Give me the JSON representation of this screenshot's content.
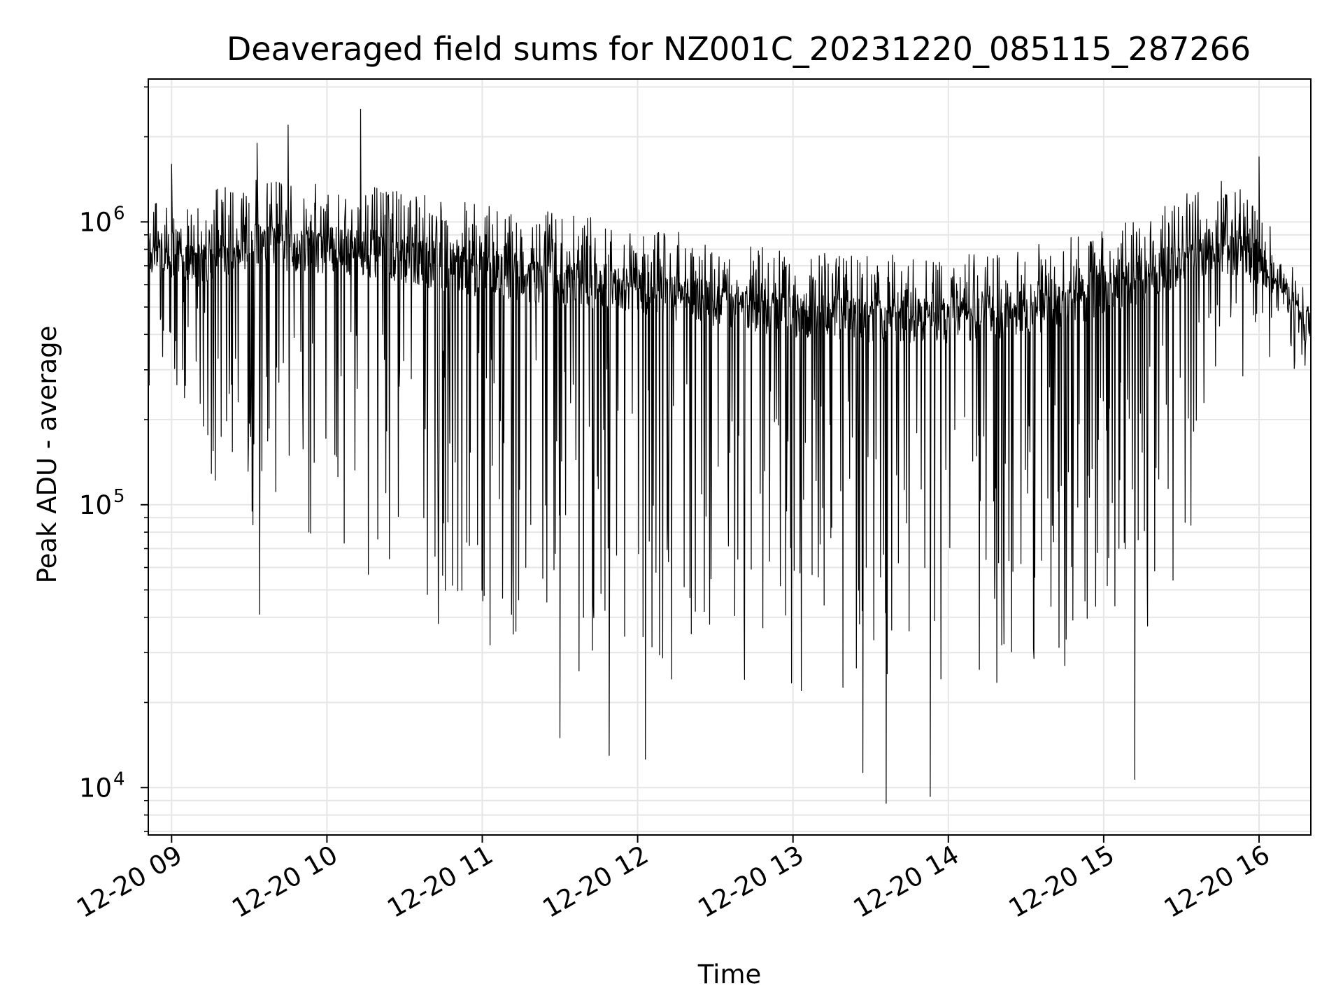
{
  "chart_data": {
    "type": "line",
    "title": "Deaveraged field sums for NZ001C_20231220_085115_287266",
    "xlabel": "Time",
    "ylabel": "Peak ADU - average",
    "yscale": "log",
    "grid": true,
    "x_tick_labels": [
      "12-20 09",
      "12-20 10",
      "12-20 11",
      "12-20 12",
      "12-20 13",
      "12-20 14",
      "12-20 15",
      "12-20 16"
    ],
    "y_tick_labels": [
      {
        "base": "10",
        "exp": "4"
      },
      {
        "base": "10",
        "exp": "5"
      },
      {
        "base": "10",
        "exp": "6"
      }
    ],
    "xlim": [
      "2023-12-20 08:51",
      "2023-12-20 16:20"
    ],
    "ylim": [
      6800,
      3200000
    ],
    "line_color": "#000000",
    "grid_color": "#e6e6e6",
    "series": [
      {
        "x": [
          "2023-12-20 08:51",
          "2023-12-20 08:55",
          "2023-12-20 09:00",
          "2023-12-20 09:10",
          "2023-12-20 09:20",
          "2023-12-20 09:30",
          "2023-12-20 09:45",
          "2023-12-20 10:00",
          "2023-12-20 10:15",
          "2023-12-20 10:30",
          "2023-12-20 10:45",
          "2023-12-20 11:00",
          "2023-12-20 11:15",
          "2023-12-20 11:30",
          "2023-12-20 11:45",
          "2023-12-20 12:00",
          "2023-12-20 12:15",
          "2023-12-20 12:30",
          "2023-12-20 12:45",
          "2023-12-20 13:00",
          "2023-12-20 13:15",
          "2023-12-20 13:30",
          "2023-12-20 13:45",
          "2023-12-20 14:00",
          "2023-12-20 14:15",
          "2023-12-20 14:30",
          "2023-12-20 14:45",
          "2023-12-20 15:00",
          "2023-12-20 15:15",
          "2023-12-20 15:30",
          "2023-12-20 15:45",
          "2023-12-20 16:00",
          "2023-12-20 16:10",
          "2023-12-20 16:20"
        ],
        "upper": [
          900000,
          1300000,
          1000000,
          1200000,
          1300000,
          1400000,
          1400000,
          1350000,
          1300000,
          1250000,
          1200000,
          1150000,
          1100000,
          1050000,
          1000000,
          950000,
          900000,
          850000,
          800000,
          780000,
          760000,
          750000,
          740000,
          740000,
          760000,
          800000,
          850000,
          950000,
          1000000,
          1200000,
          1400000,
          1200000,
          800000,
          500000
        ],
        "median": [
          700000,
          800000,
          700000,
          700000,
          750000,
          800000,
          800000,
          780000,
          760000,
          720000,
          680000,
          650000,
          620000,
          600000,
          580000,
          560000,
          530000,
          500000,
          480000,
          460000,
          450000,
          440000,
          440000,
          440000,
          450000,
          470000,
          500000,
          550000,
          600000,
          700000,
          800000,
          700000,
          550000,
          400000
        ],
        "lower": [
          250000,
          300000,
          300000,
          150000,
          100000,
          80000,
          60000,
          55000,
          50000,
          45000,
          38000,
          33000,
          28000,
          25000,
          24000,
          24000,
          23000,
          23000,
          23000,
          22000,
          22000,
          22000,
          22000,
          22000,
          22000,
          23000,
          24000,
          27000,
          32000,
          50000,
          200000,
          350000,
          300000,
          300000
        ],
        "spikes_high": [
          {
            "x": "2023-12-20 10:13",
            "y": 2500000
          },
          {
            "x": "2023-12-20 09:45",
            "y": 2200000
          },
          {
            "x": "2023-12-20 09:33",
            "y": 1900000
          },
          {
            "x": "2023-12-20 16:00",
            "y": 1700000
          },
          {
            "x": "2023-12-20 09:00",
            "y": 1600000
          }
        ],
        "spikes_low": [
          {
            "x": "2023-12-20 09:34",
            "y": 41000
          },
          {
            "x": "2023-12-20 10:43",
            "y": 38000
          },
          {
            "x": "2023-12-20 11:30",
            "y": 15000
          },
          {
            "x": "2023-12-20 11:49",
            "y": 13000
          },
          {
            "x": "2023-12-20 12:03",
            "y": 12600
          },
          {
            "x": "2023-12-20 13:27",
            "y": 11300
          },
          {
            "x": "2023-12-20 13:36",
            "y": 8800
          },
          {
            "x": "2023-12-20 13:53",
            "y": 9300
          },
          {
            "x": "2023-12-20 15:12",
            "y": 10700
          }
        ]
      }
    ]
  }
}
